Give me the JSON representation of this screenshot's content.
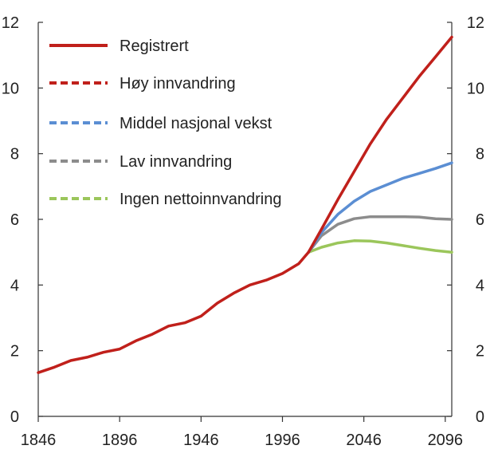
{
  "chart_data": {
    "type": "line",
    "title": "",
    "xlabel": "",
    "ylabel": "",
    "xlim": [
      1846,
      2100
    ],
    "ylim": [
      0,
      12
    ],
    "x_ticks": [
      "1846",
      "1896",
      "1946",
      "1996",
      "2046",
      "2096"
    ],
    "y_ticks": [
      "0",
      "2",
      "4",
      "6",
      "8",
      "10",
      "12"
    ],
    "y_ticks_right": [
      "0",
      "2",
      "4",
      "6",
      "8",
      "10",
      "12"
    ],
    "grid": false,
    "legend_position": "top-left",
    "series": [
      {
        "name": "Registrert",
        "color": "#c0201b",
        "style": "solid",
        "x": [
          1846,
          1856,
          1866,
          1876,
          1886,
          1896,
          1906,
          1916,
          1926,
          1936,
          1946,
          1956,
          1966,
          1976,
          1986,
          1996,
          2006,
          2012
        ],
        "y": [
          1.33,
          1.5,
          1.7,
          1.8,
          1.95,
          2.05,
          2.3,
          2.5,
          2.75,
          2.85,
          3.05,
          3.45,
          3.75,
          4.0,
          4.15,
          4.35,
          4.65,
          5.0
        ]
      },
      {
        "name": "Høy innvandring",
        "color": "#c0201b",
        "style": "dashed",
        "x": [
          2012,
          2020,
          2030,
          2040,
          2050,
          2060,
          2070,
          2080,
          2090,
          2100
        ],
        "y": [
          5.0,
          5.7,
          6.6,
          7.45,
          8.3,
          9.05,
          9.7,
          10.35,
          10.95,
          11.55
        ]
      },
      {
        "name": "Middel nasjonal vekst",
        "color": "#5b8ed3",
        "style": "dashed",
        "x": [
          2012,
          2020,
          2030,
          2040,
          2050,
          2060,
          2070,
          2080,
          2090,
          2100
        ],
        "y": [
          5.0,
          5.6,
          6.15,
          6.55,
          6.85,
          7.05,
          7.25,
          7.4,
          7.55,
          7.72
        ]
      },
      {
        "name": "Lav innvandring",
        "color": "#8c8c8c",
        "style": "dashed",
        "x": [
          2012,
          2020,
          2030,
          2040,
          2050,
          2060,
          2070,
          2080,
          2090,
          2100
        ],
        "y": [
          5.0,
          5.5,
          5.85,
          6.02,
          6.08,
          6.08,
          6.08,
          6.07,
          6.02,
          6.0
        ]
      },
      {
        "name": "Ingen nettoinnvandring",
        "color": "#9bc65b",
        "style": "dashed",
        "x": [
          2012,
          2020,
          2030,
          2040,
          2050,
          2060,
          2070,
          2080,
          2090,
          2100
        ],
        "y": [
          5.0,
          5.15,
          5.28,
          5.35,
          5.34,
          5.28,
          5.2,
          5.12,
          5.05,
          5.0
        ]
      }
    ]
  }
}
